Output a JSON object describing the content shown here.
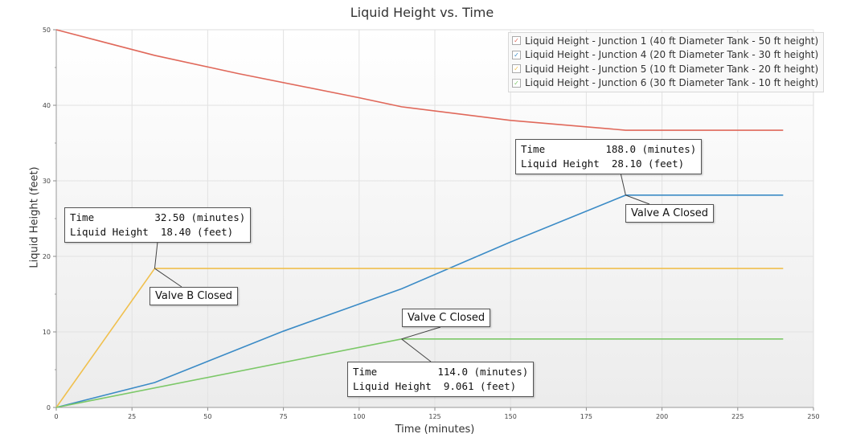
{
  "chart_data": {
    "type": "line",
    "title": "Liquid Height vs. Time",
    "xlabel": "Time (minutes)",
    "ylabel": "Liquid Height (feet)",
    "xlim": [
      0,
      250
    ],
    "ylim": [
      0,
      50
    ],
    "xticks": [
      0,
      25,
      50,
      75,
      100,
      125,
      150,
      175,
      200,
      225,
      250
    ],
    "yticks": [
      0,
      10,
      20,
      30,
      40,
      50
    ],
    "grid": true,
    "legend_position": "top-right",
    "series": [
      {
        "name": "Liquid Height - Junction 1 (40 ft Diameter Tank - 50 ft height)",
        "color": "#e0685a",
        "points": [
          [
            0,
            50
          ],
          [
            32.5,
            46.6
          ],
          [
            60,
            44.2
          ],
          [
            100,
            41.0
          ],
          [
            114,
            39.8
          ],
          [
            150,
            38.0
          ],
          [
            188,
            36.7
          ],
          [
            240,
            36.7
          ]
        ]
      },
      {
        "name": "Liquid Height - Junction 4 (20 ft Diameter Tank - 30 ft height)",
        "color": "#3b8bc6",
        "points": [
          [
            0,
            0
          ],
          [
            32.5,
            3.3
          ],
          [
            75,
            10.1
          ],
          [
            114,
            15.7
          ],
          [
            150,
            21.9
          ],
          [
            188,
            28.1
          ],
          [
            240,
            28.1
          ]
        ]
      },
      {
        "name": "Liquid Height - Junction 5 (10 ft Diameter Tank - 20 ft height)",
        "color": "#f0c04e",
        "points": [
          [
            0,
            0
          ],
          [
            32.5,
            18.4
          ],
          [
            240,
            18.4
          ]
        ]
      },
      {
        "name": "Liquid Height - Junction 6 (30 ft Diameter Tank - 10 ft height)",
        "color": "#7cc868",
        "points": [
          [
            0,
            0
          ],
          [
            114,
            9.061
          ],
          [
            240,
            9.061
          ]
        ]
      }
    ],
    "annotations": [
      {
        "x": 32.5,
        "y": 18.4,
        "line1": "Time          32.50 (minutes)",
        "line2": "Liquid Height  18.40 (feet)",
        "label": "Valve B Closed"
      },
      {
        "x": 188.0,
        "y": 28.1,
        "line1": "Time          188.0 (minutes)",
        "line2": "Liquid Height  28.10 (feet)",
        "label": "Valve A Closed"
      },
      {
        "x": 114.0,
        "y": 9.061,
        "line1": "Time          114.0 (minutes)",
        "line2": "Liquid Height  9.061 (feet)",
        "label": "Valve C Closed"
      }
    ]
  }
}
